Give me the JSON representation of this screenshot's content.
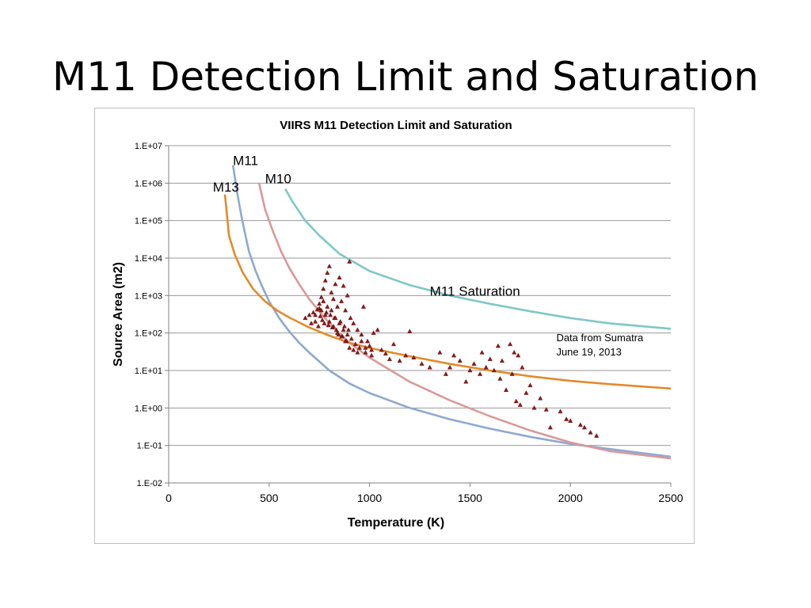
{
  "slide": {
    "title": "M11 Detection Limit and Saturation"
  },
  "chart_data": {
    "type": "scatter",
    "title": "VIIRS M11 Detection Limit and Saturation",
    "xlabel": "Temperature (K)",
    "ylabel": "Source Area (m2)",
    "xlim": [
      0,
      2500
    ],
    "ylim": [
      0.01,
      10000000
    ],
    "y_scale": "log",
    "grid": "horizontal",
    "x_ticks": [
      "0",
      "500",
      "1000",
      "1500",
      "2000",
      "2500"
    ],
    "y_ticks": [
      "1.E-02",
      "1.E-01",
      "1.E+00",
      "1.E+01",
      "1.E+02",
      "1.E+03",
      "1.E+04",
      "1.E+05",
      "1.E+06",
      "1.E+07"
    ],
    "series": [
      {
        "name": "M11",
        "color": "#8ea9cf",
        "x": [
          320,
          340,
          360,
          380,
          400,
          430,
          460,
          500,
          550,
          600,
          650,
          700,
          800,
          900,
          1000,
          1200,
          1400,
          1600,
          1800,
          2000,
          2200,
          2500
        ],
        "y": [
          3000000,
          600000,
          150000,
          45000,
          15000,
          5000,
          2000,
          700,
          250,
          110,
          55,
          30,
          10,
          4.5,
          2.5,
          1.0,
          0.5,
          0.28,
          0.17,
          0.11,
          0.08,
          0.05
        ]
      },
      {
        "name": "M10",
        "color": "#d9999a",
        "x": [
          450,
          480,
          520,
          560,
          600,
          650,
          700,
          800,
          900,
          1000,
          1200,
          1400,
          1600,
          1800,
          2000,
          2200,
          2500
        ],
        "y": [
          1000000,
          200000,
          50000,
          15000,
          5500,
          2000,
          800,
          180,
          55,
          22,
          5,
          1.6,
          0.6,
          0.25,
          0.12,
          0.07,
          0.045
        ]
      },
      {
        "name": "M13",
        "color": "#e38b2c",
        "x": [
          280,
          300,
          330,
          370,
          420,
          480,
          540,
          600,
          700,
          800,
          900,
          1000,
          1200,
          1400,
          1600,
          1800,
          2000,
          2200,
          2500
        ],
        "y": [
          500000,
          40000,
          12000,
          4000,
          1500,
          700,
          400,
          260,
          140,
          85,
          55,
          40,
          24,
          15,
          10,
          7,
          5.3,
          4.3,
          3.3
        ]
      },
      {
        "name": "M11 Saturation",
        "color": "#7ec8c6",
        "x": [
          580,
          620,
          680,
          750,
          850,
          1000,
          1200,
          1400,
          1600,
          1800,
          2000,
          2200,
          2500
        ],
        "y": [
          700000,
          300000,
          100000,
          40000,
          13000,
          4500,
          1900,
          1000,
          600,
          380,
          250,
          180,
          130
        ]
      },
      {
        "name": "Data from Sumatra June 19, 2013",
        "type": "scatter",
        "color": "#8b1a1a",
        "x": [
          680,
          700,
          710,
          720,
          730,
          740,
          745,
          750,
          755,
          760,
          765,
          770,
          775,
          780,
          785,
          790,
          795,
          800,
          805,
          810,
          815,
          820,
          825,
          830,
          835,
          840,
          845,
          850,
          855,
          860,
          865,
          870,
          875,
          880,
          885,
          890,
          895,
          900,
          905,
          910,
          920,
          930,
          940,
          950,
          960,
          970,
          980,
          990,
          1000,
          1010,
          1020,
          1040,
          1060,
          1080,
          1100,
          1120,
          1150,
          1180,
          1200,
          1220,
          1260,
          1300,
          1350,
          1380,
          1400,
          1420,
          1450,
          1480,
          1500,
          1520,
          1550,
          1560,
          1580,
          1600,
          1620,
          1640,
          1650,
          1660,
          1680,
          1700,
          1710,
          1720,
          1730,
          1740,
          1750,
          1760,
          1780,
          1800,
          1820,
          1850,
          1880,
          1900,
          1950,
          1980,
          2000,
          2050,
          2070,
          2100,
          2130,
          760,
          780,
          800,
          820,
          840,
          860,
          880,
          900,
          920,
          940,
          790,
          810,
          830,
          850,
          870,
          890,
          770,
          750,
          730,
          960,
          980,
          1010
        ],
        "y": [
          250,
          300,
          180,
          350,
          200,
          420,
          150,
          600,
          280,
          900,
          220,
          1500,
          180,
          2500,
          350,
          4000,
          160,
          6000,
          300,
          1200,
          140,
          800,
          250,
          2000,
          120,
          500,
          90,
          3000,
          200,
          700,
          80,
          1800,
          150,
          400,
          60,
          1000,
          120,
          8000,
          250,
          70,
          180,
          50,
          120,
          40,
          90,
          500,
          30,
          60,
          45,
          25,
          100,
          120,
          35,
          28,
          20,
          50,
          18,
          25,
          110,
          22,
          15,
          12,
          30,
          8,
          12,
          25,
          18,
          5,
          10,
          15,
          8,
          30,
          12,
          20,
          10,
          45,
          6,
          18,
          3,
          50,
          8,
          30,
          1.5,
          25,
          1.2,
          12,
          2.5,
          4,
          1.0,
          1.8,
          0.9,
          0.3,
          0.8,
          0.5,
          0.45,
          0.35,
          0.3,
          0.22,
          0.18,
          400,
          300,
          200,
          150,
          100,
          80,
          60,
          40,
          35,
          30,
          500,
          400,
          250,
          180,
          120,
          90,
          700,
          450,
          300,
          60,
          40,
          35
        ]
      }
    ],
    "labels": [
      {
        "text": "M11",
        "x": 320,
        "y": 3000000
      },
      {
        "text": "M10",
        "x": 480,
        "y": 1000000
      },
      {
        "text": "M13",
        "x": 220,
        "y": 600000
      },
      {
        "text": "M11 Saturation",
        "x": 1300,
        "y": 1000
      },
      {
        "text": "Data from Sumatra",
        "x": 1930,
        "y": 60
      },
      {
        "text": "June 19, 2013",
        "x": 1930,
        "y": 25
      }
    ]
  }
}
